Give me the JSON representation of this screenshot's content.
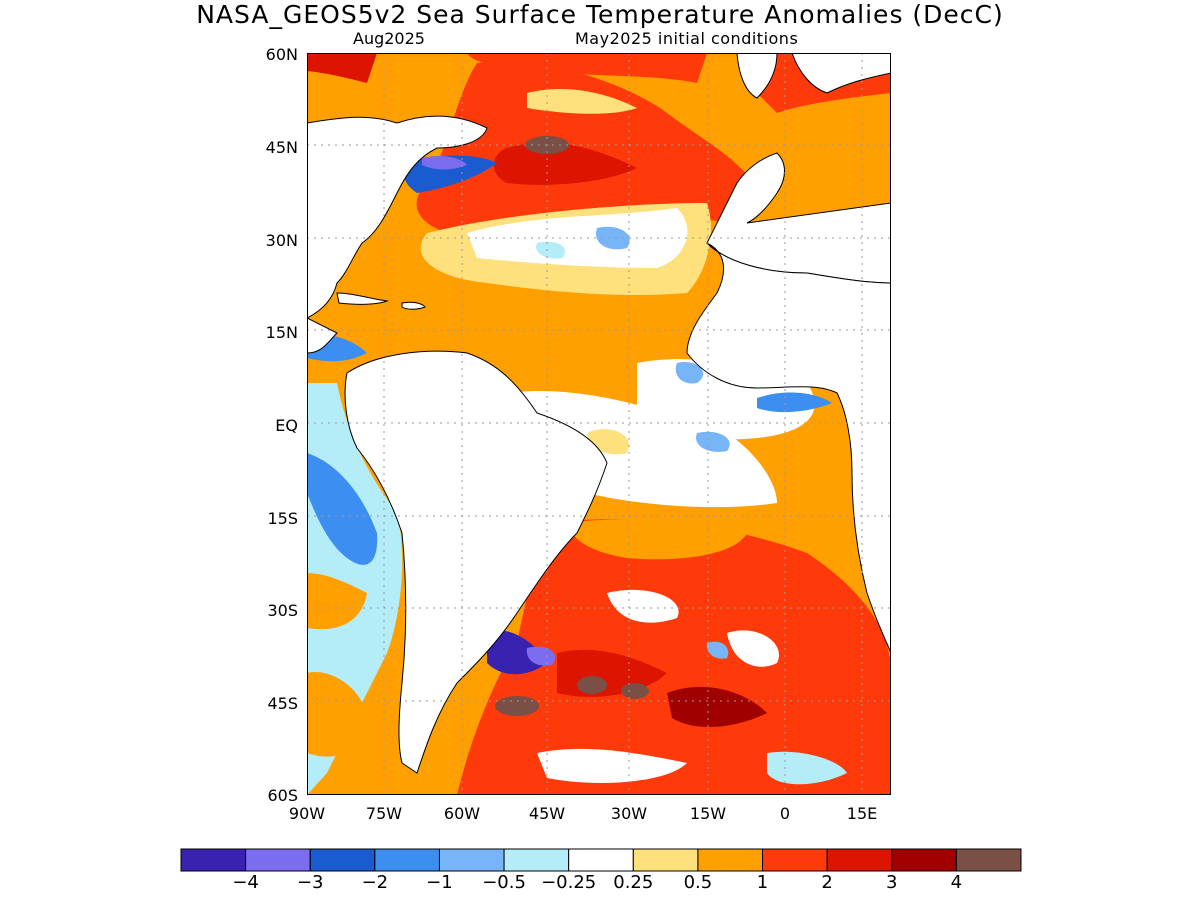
{
  "title": "NASA_GEOS5v2 Sea Surface Temperature Anomalies (DecC)",
  "subtitle_left": "Aug2025",
  "subtitle_right": "May2025 initial conditions",
  "lat_labels": [
    "60N",
    "45N",
    "30N",
    "15N",
    "EQ",
    "15S",
    "30S",
    "45S",
    "60S"
  ],
  "lon_labels": [
    "90W",
    "75W",
    "60W",
    "45W",
    "30W",
    "15W",
    "0",
    "15E"
  ],
  "colorbar": {
    "colors": [
      "#3a22b0",
      "#7b6cf0",
      "#1a5cd0",
      "#3c8ff0",
      "#78b4f8",
      "#b4ecf8",
      "#ffffff",
      "#fee17c",
      "#ffa000",
      "#ff3a0a",
      "#dc1400",
      "#a00000",
      "#7a5046"
    ],
    "labels": [
      "−4",
      "−3",
      "−2",
      "−1",
      "−0.5",
      "−0.25",
      "0.25",
      "0.5",
      "1",
      "2",
      "3",
      "4"
    ]
  },
  "map_colors": {
    "ocean_base": "#ffffff",
    "land": "#ffffff",
    "coast": "#000000",
    "grid": "#bfbfbf"
  }
}
